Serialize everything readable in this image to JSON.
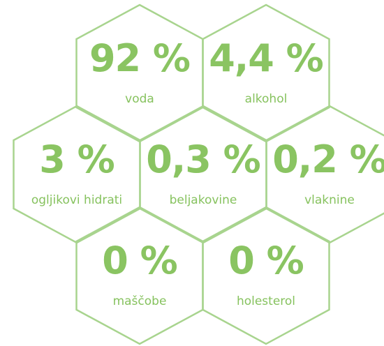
{
  "cells": [
    {
      "value": "92 %",
      "label": "voda"
    },
    {
      "value": "4,4 %",
      "label": "alkohol"
    },
    {
      "value": "3 %",
      "label": "ogljikovi hidrati"
    },
    {
      "value": "0,3 %",
      "label": "beljakovine"
    },
    {
      "value": "0,2 %",
      "label": "vlaknine"
    },
    {
      "value": "0 %",
      "label": "maščobe"
    },
    {
      "value": "0 %",
      "label": "holesterol"
    }
  ]
}
